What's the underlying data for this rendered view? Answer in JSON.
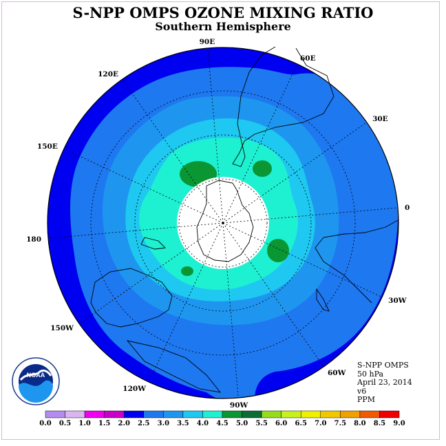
{
  "title": "S-NPP OMPS OZONE MIXING RATIO",
  "subtitle": "Southern Hemisphere",
  "info": [
    "S-NPP OMPS",
    "50 hPa",
    "April 23, 2014",
    "v6",
    "PPM"
  ],
  "logo_text": "NOAA",
  "logo_ring_text": "NATIONAL OCEANIC AND ATMOSPHERIC ADMINISTRATION · U.S. DEPARTMENT OF COMMERCE",
  "longitude_labels": [
    {
      "text": "90W",
      "lon": -90
    },
    {
      "text": "60W",
      "lon": -60
    },
    {
      "text": "30W",
      "lon": -30
    },
    {
      "text": "0",
      "lon": 0
    },
    {
      "text": "30E",
      "lon": 30
    },
    {
      "text": "60E",
      "lon": 60
    },
    {
      "text": "90E",
      "lon": 90
    },
    {
      "text": "120E",
      "lon": 120
    },
    {
      "text": "150E",
      "lon": 150
    },
    {
      "text": "180",
      "lon": 180
    },
    {
      "text": "150W",
      "lon": -150
    },
    {
      "text": "120W",
      "lon": -120
    }
  ],
  "colorbar": {
    "ticks": [
      "0.0",
      "0.5",
      "1.0",
      "1.5",
      "2.0",
      "2.5",
      "3.0",
      "3.5",
      "4.0",
      "4.5",
      "5.0",
      "5.5",
      "6.0",
      "6.5",
      "7.0",
      "7.5",
      "8.0",
      "8.5",
      "9.0"
    ],
    "colors": [
      "#b48cf0",
      "#dcb4f0",
      "#f000f0",
      "#c800c8",
      "#0000f0",
      "#1e78f0",
      "#1e96f0",
      "#1ec8f0",
      "#1ef0d2",
      "#0a9632",
      "#0a6e32",
      "#96dc1e",
      "#c8f01e",
      "#f0f000",
      "#f0c800",
      "#f0a000",
      "#f05a00",
      "#f00000",
      "#8c5a3c"
    ]
  },
  "field_colors": {
    "c2_0": "#0000f0",
    "c2_5": "#1e78f0",
    "c3_0": "#1e96f0",
    "c3_5": "#1ec8f0",
    "c4_0": "#1ef0d2",
    "c4_5": "#0a9632",
    "polar_night": "#ffffff"
  }
}
